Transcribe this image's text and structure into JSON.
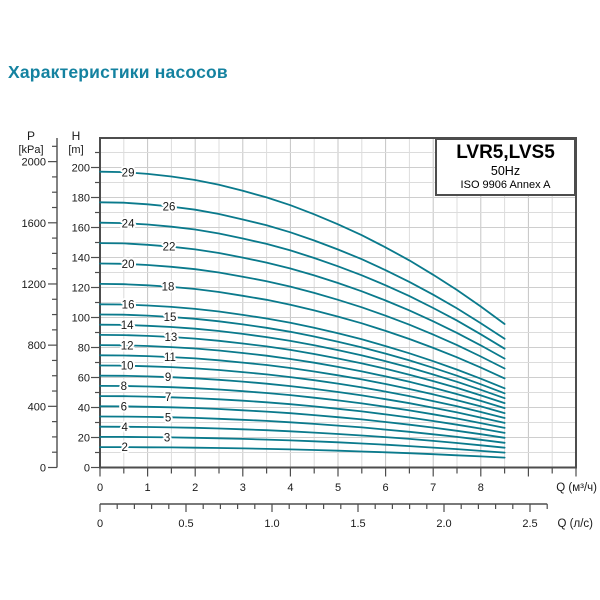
{
  "title": "Характеристики насосов",
  "info_box": {
    "model": "LVR5,LVS5",
    "frequency": "50Hz",
    "standard": "ISO 9906 Annex A"
  },
  "chart_data": {
    "type": "line",
    "title": "Характеристики насосов",
    "subtitle": "LVR5,LVS5 50Hz ISO 9906 Annex A",
    "grid": "on",
    "x_axes": [
      {
        "name": "flow_m3h",
        "label": "Q (м³/ч)",
        "tick_labels": [
          0,
          1,
          2,
          3,
          4,
          5,
          6,
          7,
          8
        ],
        "minor_step": 0.5,
        "range": [
          0,
          10
        ]
      },
      {
        "name": "flow_ls",
        "label": "Q (л/с)",
        "tick_labels": [
          "0",
          "0.5",
          "1.0",
          "1.5",
          "2.0",
          "2.5"
        ],
        "minor_step": 0.1,
        "range": [
          0,
          2.6
        ]
      }
    ],
    "y_axes": [
      {
        "name": "pressure",
        "label": "P",
        "unit": "[kPa]",
        "tick_labels": [
          2000,
          1600,
          1200,
          800,
          400,
          0
        ],
        "minor_step": 100,
        "range": [
          0,
          2155
        ]
      },
      {
        "name": "head",
        "label": "H",
        "unit": "[m]",
        "tick_labels": [
          200,
          180,
          160,
          140,
          120,
          100,
          80,
          60,
          40,
          20,
          0
        ],
        "minor_step": 10,
        "range": [
          0,
          219.5
        ]
      }
    ],
    "series_model": {
      "description": "Each curve is a pump with n stages: H(Q) = n × head_per_stage(Q), Q in м³/ч, H in m; curves run from Q=0 to Q=8.5",
      "q": [
        0,
        0.5,
        1,
        1.5,
        2,
        2.5,
        3,
        3.5,
        4,
        4.5,
        5,
        5.5,
        6,
        6.5,
        7,
        7.5,
        8,
        8.5
      ],
      "head_per_stage": [
        6.8,
        6.79,
        6.75,
        6.69,
        6.61,
        6.5,
        6.36,
        6.21,
        6.03,
        5.82,
        5.59,
        5.34,
        5.06,
        4.76,
        4.43,
        4.08,
        3.7,
        3.3
      ]
    },
    "stages": [
      {
        "n": 2,
        "label_q": 0.52
      },
      {
        "n": 3,
        "label_q": 1.41
      },
      {
        "n": 4,
        "label_q": 0.52
      },
      {
        "n": 5,
        "label_q": 1.43
      },
      {
        "n": 6,
        "label_q": 0.5
      },
      {
        "n": 7,
        "label_q": 1.43
      },
      {
        "n": 8,
        "label_q": 0.5
      },
      {
        "n": 9,
        "label_q": 1.43
      },
      {
        "n": 10,
        "label_q": 0.57
      },
      {
        "n": 11,
        "label_q": 1.47
      },
      {
        "n": 12,
        "label_q": 0.57
      },
      {
        "n": 13,
        "label_q": 1.49
      },
      {
        "n": 14,
        "label_q": 0.57
      },
      {
        "n": 15,
        "label_q": 1.47
      },
      {
        "n": 16,
        "label_q": 0.59
      },
      {
        "n": 18,
        "label_q": 1.43
      },
      {
        "n": 20,
        "label_q": 0.59
      },
      {
        "n": 22,
        "label_q": 1.45
      },
      {
        "n": 24,
        "label_q": 0.59
      },
      {
        "n": 26,
        "label_q": 1.45
      },
      {
        "n": 29,
        "label_q": 0.59
      }
    ],
    "colors": {
      "curve": "#0a7a8c",
      "grid_minor": "#dcdcdc",
      "grid_major": "#c4c4c4",
      "axis": "#4d4d4d",
      "text": "#1a1a1a",
      "title": "#1482a0"
    }
  }
}
